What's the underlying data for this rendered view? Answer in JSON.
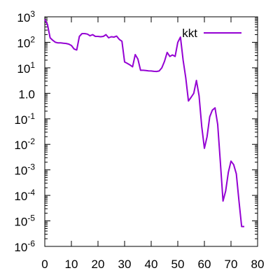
{
  "chart_data": {
    "type": "line",
    "title": "",
    "xlabel": "",
    "ylabel": "",
    "xscale": "linear",
    "yscale": "log",
    "xlim": [
      0,
      80
    ],
    "ylim": [
      1e-06,
      1000
    ],
    "grid": false,
    "legend_position": "top-right",
    "x_ticks": [
      {
        "value": 0,
        "label": "0"
      },
      {
        "value": 10,
        "label": "10"
      },
      {
        "value": 20,
        "label": "20"
      },
      {
        "value": 30,
        "label": "30"
      },
      {
        "value": 40,
        "label": "40"
      },
      {
        "value": 50,
        "label": "50"
      },
      {
        "value": 60,
        "label": "60"
      },
      {
        "value": 70,
        "label": "70"
      },
      {
        "value": 80,
        "label": "80"
      }
    ],
    "y_ticks": [
      {
        "value": 1e-06,
        "base": "10",
        "exp": "-6"
      },
      {
        "value": 1e-05,
        "base": "10",
        "exp": "-5"
      },
      {
        "value": 0.0001,
        "base": "10",
        "exp": "-4"
      },
      {
        "value": 0.001,
        "base": "10",
        "exp": "-3"
      },
      {
        "value": 0.01,
        "base": "10",
        "exp": "-2"
      },
      {
        "value": 0.1,
        "base": "10",
        "exp": "-1"
      },
      {
        "value": 1,
        "base": "10",
        "exp": "0",
        "text": "1.0"
      },
      {
        "value": 10,
        "base": "10",
        "exp": "1"
      },
      {
        "value": 100,
        "base": "10",
        "exp": "2"
      },
      {
        "value": 1000,
        "base": "10",
        "exp": "3"
      }
    ],
    "y_tick_texts": [
      "10",
      "10",
      "10",
      "10",
      "10",
      "10",
      "10",
      "10",
      "10",
      "10"
    ],
    "series": [
      {
        "name": "kkt",
        "color": "#9400d3",
        "x": [
          0,
          1,
          2,
          3,
          4,
          5,
          6,
          7,
          8,
          9,
          10,
          11,
          12,
          13,
          14,
          15,
          16,
          17,
          18,
          19,
          20,
          21,
          22,
          23,
          24,
          25,
          26,
          27,
          28,
          29,
          30,
          31,
          32,
          33,
          34,
          35,
          36,
          37,
          38,
          39,
          40,
          41,
          42,
          43,
          44,
          45,
          46,
          47,
          48,
          49,
          50,
          51,
          52,
          53,
          54,
          55,
          56,
          57,
          58,
          59,
          60,
          61,
          62,
          63,
          64,
          65,
          66,
          67,
          68,
          69,
          70,
          71,
          72,
          73,
          74,
          75
        ],
        "y": [
          800,
          500,
          150,
          120,
          100,
          95,
          95,
          92,
          90,
          85,
          75,
          55,
          50,
          170,
          220,
          220,
          210,
          180,
          200,
          170,
          170,
          165,
          170,
          200,
          150,
          165,
          160,
          175,
          130,
          110,
          17,
          15,
          13,
          11,
          33,
          22,
          8,
          8,
          7.8,
          7.6,
          7.5,
          7.3,
          7.2,
          7.5,
          10,
          18,
          40,
          28,
          32,
          28,
          100,
          160,
          20,
          4,
          0.5,
          0.7,
          1.0,
          3.2,
          0.8,
          0.05,
          0.007,
          0.02,
          0.12,
          0.22,
          0.27,
          0.06,
          0.002,
          6e-05,
          0.00015,
          0.0008,
          0.0022,
          0.0016,
          0.0007,
          6e-05,
          6e-06,
          6e-06
        ]
      }
    ]
  }
}
